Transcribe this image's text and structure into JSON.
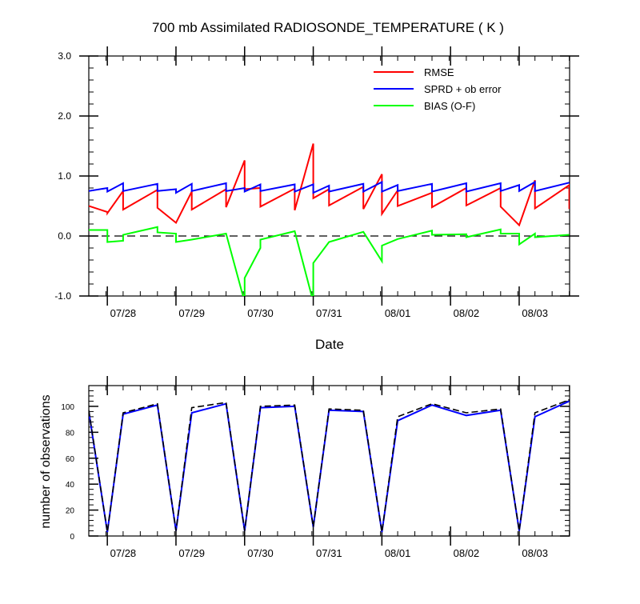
{
  "chart_data": [
    {
      "type": "line",
      "title": "700 mb Assimilated RADIOSONDE_TEMPERATURE ( K )",
      "xlabel": "Date",
      "ylabel": "",
      "x_axis": "time",
      "x_ticks": [
        "07/28",
        "07/29",
        "07/30",
        "07/31",
        "08/01",
        "08/02",
        "08/03"
      ],
      "y_ticks": [
        "-1.0",
        "0.0",
        "1.0",
        "2.0",
        "3.0"
      ],
      "ylim": [
        -1,
        3
      ],
      "reference_line": {
        "y": 0,
        "style": "dashed"
      },
      "legend_position": "top-right",
      "series": [
        {
          "name": "RMSE",
          "color": "#ff0000",
          "points": [
            [
              0,
              0.5
            ],
            [
              0.27,
              0.4
            ],
            [
              0.27,
              0.38
            ],
            [
              0.5,
              0.75
            ],
            [
              0.5,
              0.44
            ],
            [
              1.0,
              0.77
            ],
            [
              1.0,
              0.47
            ],
            [
              1.27,
              0.22
            ],
            [
              1.5,
              0.74
            ],
            [
              1.5,
              0.44
            ],
            [
              2.0,
              0.78
            ],
            [
              2.0,
              0.48
            ],
            [
              2.27,
              1.26
            ],
            [
              2.27,
              0.78
            ],
            [
              2.5,
              0.8
            ],
            [
              2.5,
              0.49
            ],
            [
              3.0,
              0.79
            ],
            [
              3.0,
              0.43
            ],
            [
              3.27,
              1.54
            ],
            [
              3.27,
              0.63
            ],
            [
              3.5,
              0.78
            ],
            [
              3.5,
              0.51
            ],
            [
              4.0,
              0.82
            ],
            [
              4.0,
              0.45
            ],
            [
              4.27,
              1.03
            ],
            [
              4.27,
              0.37
            ],
            [
              4.5,
              0.76
            ],
            [
              4.5,
              0.5
            ],
            [
              5.0,
              0.72
            ],
            [
              5.0,
              0.48
            ],
            [
              5.5,
              0.8
            ],
            [
              5.5,
              0.51
            ],
            [
              6.0,
              0.8
            ],
            [
              6.0,
              0.49
            ],
            [
              6.27,
              0.18
            ],
            [
              6.5,
              0.93
            ],
            [
              6.5,
              0.46
            ],
            [
              7.0,
              0.85
            ],
            [
              7.0,
              0.45
            ]
          ]
        },
        {
          "name": "SPRD + ob error",
          "color": "#0000ff",
          "points": [
            [
              0,
              0.75
            ],
            [
              0.27,
              0.8
            ],
            [
              0.27,
              0.74
            ],
            [
              0.5,
              0.88
            ],
            [
              0.5,
              0.75
            ],
            [
              1.0,
              0.87
            ],
            [
              1.0,
              0.75
            ],
            [
              1.27,
              0.78
            ],
            [
              1.27,
              0.72
            ],
            [
              1.5,
              0.87
            ],
            [
              1.5,
              0.75
            ],
            [
              2.0,
              0.88
            ],
            [
              2.0,
              0.75
            ],
            [
              2.27,
              0.8
            ],
            [
              2.27,
              0.74
            ],
            [
              2.5,
              0.86
            ],
            [
              2.5,
              0.75
            ],
            [
              3.0,
              0.86
            ],
            [
              3.0,
              0.74
            ],
            [
              3.27,
              0.86
            ],
            [
              3.27,
              0.72
            ],
            [
              3.5,
              0.84
            ],
            [
              3.5,
              0.74
            ],
            [
              4.0,
              0.87
            ],
            [
              4.0,
              0.74
            ],
            [
              4.27,
              0.9
            ],
            [
              4.27,
              0.74
            ],
            [
              4.5,
              0.85
            ],
            [
              4.5,
              0.75
            ],
            [
              5.0,
              0.87
            ],
            [
              5.0,
              0.74
            ],
            [
              5.5,
              0.88
            ],
            [
              5.5,
              0.74
            ],
            [
              6.0,
              0.88
            ],
            [
              6.0,
              0.75
            ],
            [
              6.27,
              0.85
            ],
            [
              6.27,
              0.75
            ],
            [
              6.5,
              0.9
            ],
            [
              6.5,
              0.75
            ],
            [
              7.0,
              0.89
            ]
          ]
        },
        {
          "name": "BIAS (O-F)",
          "color": "#00ff00",
          "points": [
            [
              0,
              0.1
            ],
            [
              0.27,
              0.1
            ],
            [
              0.27,
              -0.1
            ],
            [
              0.5,
              -0.08
            ],
            [
              0.5,
              0.02
            ],
            [
              1.0,
              0.15
            ],
            [
              1.0,
              0.06
            ],
            [
              1.27,
              0.04
            ],
            [
              1.27,
              -0.1
            ],
            [
              1.5,
              -0.06
            ],
            [
              2.0,
              0.04
            ],
            [
              2.27,
              -1.1
            ],
            [
              2.27,
              -0.7
            ],
            [
              2.5,
              -0.2
            ],
            [
              2.5,
              -0.06
            ],
            [
              3.0,
              0.08
            ],
            [
              3.27,
              -1.1
            ],
            [
              3.27,
              -0.45
            ],
            [
              3.5,
              -0.1
            ],
            [
              4.0,
              0.07
            ],
            [
              4.27,
              -0.42
            ],
            [
              4.27,
              -0.16
            ],
            [
              4.5,
              -0.05
            ],
            [
              5.0,
              0.09
            ],
            [
              5.0,
              0.02
            ],
            [
              5.5,
              0.03
            ],
            [
              5.5,
              -0.02
            ],
            [
              6.0,
              0.11
            ],
            [
              6.0,
              0.04
            ],
            [
              6.27,
              0.04
            ],
            [
              6.27,
              -0.14
            ],
            [
              6.5,
              0.04
            ],
            [
              6.5,
              -0.02
            ],
            [
              7.0,
              0.02
            ]
          ]
        }
      ]
    },
    {
      "type": "line",
      "title": "",
      "xlabel": "",
      "ylabel": "number of observations",
      "x_axis": "time",
      "x_ticks": [
        "07/28",
        "07/29",
        "07/30",
        "07/31",
        "08/01",
        "08/02",
        "08/03"
      ],
      "y_ticks": [
        "0",
        "20",
        "40",
        "60",
        "80",
        "100"
      ],
      "ylim": [
        0,
        116
      ],
      "series": [
        {
          "color": "#0000ff",
          "style": "solid",
          "points": [
            [
              0,
              96
            ],
            [
              0.27,
              3
            ],
            [
              0.5,
              94
            ],
            [
              1.0,
              101
            ],
            [
              1.27,
              4
            ],
            [
              1.5,
              95
            ],
            [
              2.0,
              102
            ],
            [
              2.27,
              4
            ],
            [
              2.5,
              99
            ],
            [
              3.0,
              100
            ],
            [
              3.27,
              7
            ],
            [
              3.5,
              97
            ],
            [
              4.0,
              96
            ],
            [
              4.27,
              3
            ],
            [
              4.5,
              89
            ],
            [
              5.0,
              101
            ],
            [
              5.5,
              93
            ],
            [
              6.0,
              97
            ],
            [
              6.27,
              4
            ],
            [
              6.5,
              92
            ],
            [
              7.0,
              104
            ]
          ]
        },
        {
          "color": "#000000",
          "style": "dashed",
          "points": [
            [
              0,
              97
            ],
            [
              0.27,
              3
            ],
            [
              0.5,
              95
            ],
            [
              1.0,
              102
            ],
            [
              1.27,
              4
            ],
            [
              1.5,
              99
            ],
            [
              2.0,
              103
            ],
            [
              2.27,
              4
            ],
            [
              2.5,
              100
            ],
            [
              3.0,
              101
            ],
            [
              3.27,
              7
            ],
            [
              3.5,
              98
            ],
            [
              4.0,
              97
            ],
            [
              4.27,
              3
            ],
            [
              4.5,
              92
            ],
            [
              5.0,
              102
            ],
            [
              5.5,
              95
            ],
            [
              6.0,
              98
            ],
            [
              6.27,
              4
            ],
            [
              6.5,
              95
            ],
            [
              7.0,
              105
            ]
          ]
        }
      ]
    }
  ]
}
